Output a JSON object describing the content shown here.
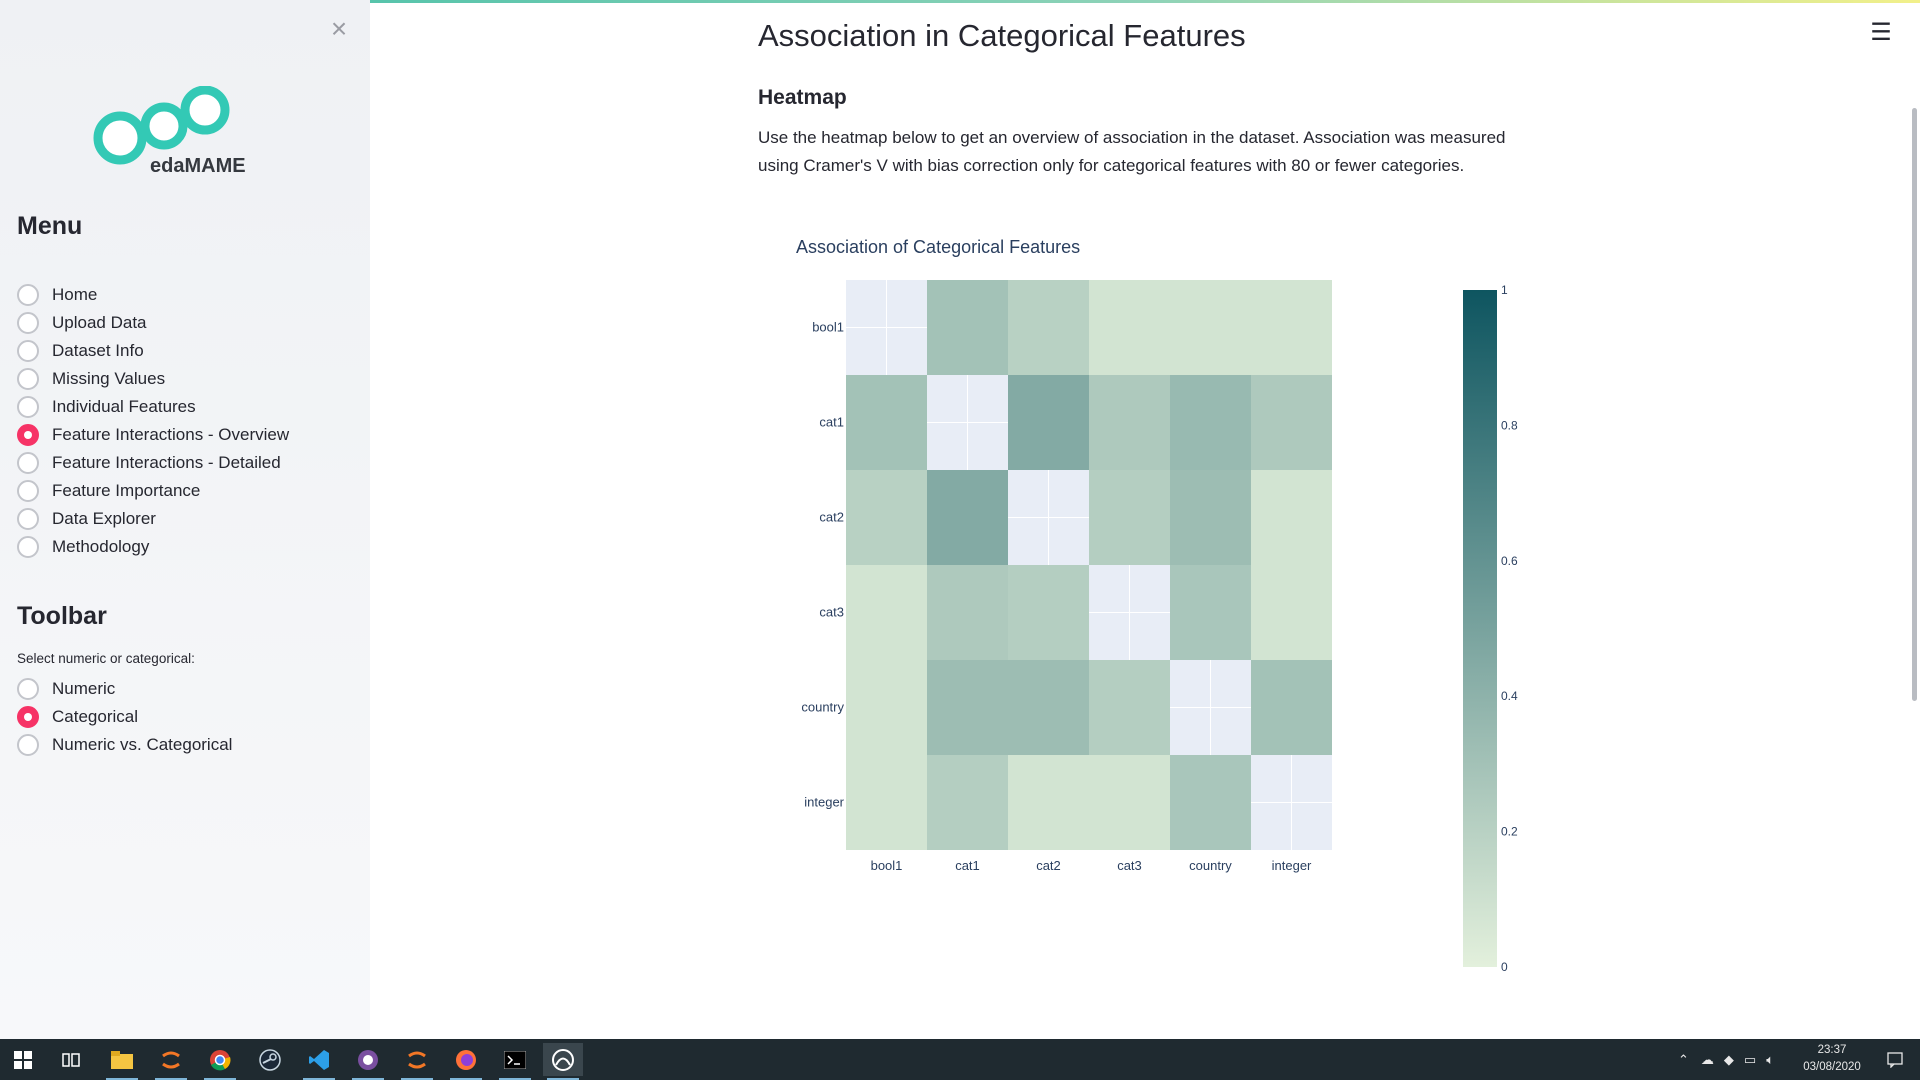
{
  "sidebar": {
    "logo_text": "edaMAME",
    "menu_heading": "Menu",
    "menu_items": [
      {
        "label": "Home",
        "checked": false
      },
      {
        "label": "Upload Data",
        "checked": false
      },
      {
        "label": "Dataset Info",
        "checked": false
      },
      {
        "label": "Missing Values",
        "checked": false
      },
      {
        "label": "Individual Features",
        "checked": false
      },
      {
        "label": "Feature Interactions - Overview",
        "checked": true
      },
      {
        "label": "Feature Interactions - Detailed",
        "checked": false
      },
      {
        "label": "Feature Importance",
        "checked": false
      },
      {
        "label": "Data Explorer",
        "checked": false
      },
      {
        "label": "Methodology",
        "checked": false
      }
    ],
    "toolbar_heading": "Toolbar",
    "toolbar_caption": "Select numeric or categorical:",
    "toolbar_items": [
      {
        "label": "Numeric",
        "checked": false
      },
      {
        "label": "Categorical",
        "checked": true
      },
      {
        "label": "Numeric vs. Categorical",
        "checked": false
      }
    ]
  },
  "main": {
    "title": "Association in Categorical Features",
    "subtitle": "Heatmap",
    "description": "Use the heatmap below to get an overview of association in the dataset. Association was measured using Cramer's V with bias correction only for categorical features with 80 or fewer categories."
  },
  "chart_data": {
    "type": "heatmap",
    "title": "Association of Categorical Features",
    "x": [
      "bool1",
      "cat1",
      "cat2",
      "cat3",
      "country",
      "integer"
    ],
    "y": [
      "bool1",
      "cat1",
      "cat2",
      "cat3",
      "country",
      "integer"
    ],
    "z": [
      [
        null,
        0.3,
        0.2,
        0.08,
        0.08,
        0.08
      ],
      [
        0.3,
        null,
        0.45,
        0.25,
        0.35,
        0.25
      ],
      [
        0.2,
        0.45,
        null,
        0.22,
        0.33,
        0.08
      ],
      [
        0.08,
        0.25,
        0.22,
        null,
        0.27,
        0.08
      ],
      [
        0.08,
        0.33,
        0.33,
        0.22,
        null,
        0.3
      ],
      [
        0.08,
        0.22,
        0.08,
        0.08,
        0.27,
        null
      ]
    ],
    "zmin": 0,
    "zmax": 1,
    "colorbar_ticks": [
      "0",
      "0.2",
      "0.4",
      "0.6",
      "0.8",
      "1"
    ],
    "colorscale": [
      "#e3f0dc",
      "#0e5560"
    ],
    "missing_color": "#e8edf6"
  },
  "taskbar": {
    "icons": [
      "windows-start-icon",
      "task-view-icon",
      "file-explorer-icon",
      "jupyter-icon",
      "chrome-icon",
      "steam-icon",
      "vscode-icon",
      "obs-icon",
      "jupyter-icon-2",
      "firefox-icon",
      "terminal-icon",
      "anaconda-icon"
    ],
    "time": "23:37",
    "date": "03/08/2020"
  }
}
